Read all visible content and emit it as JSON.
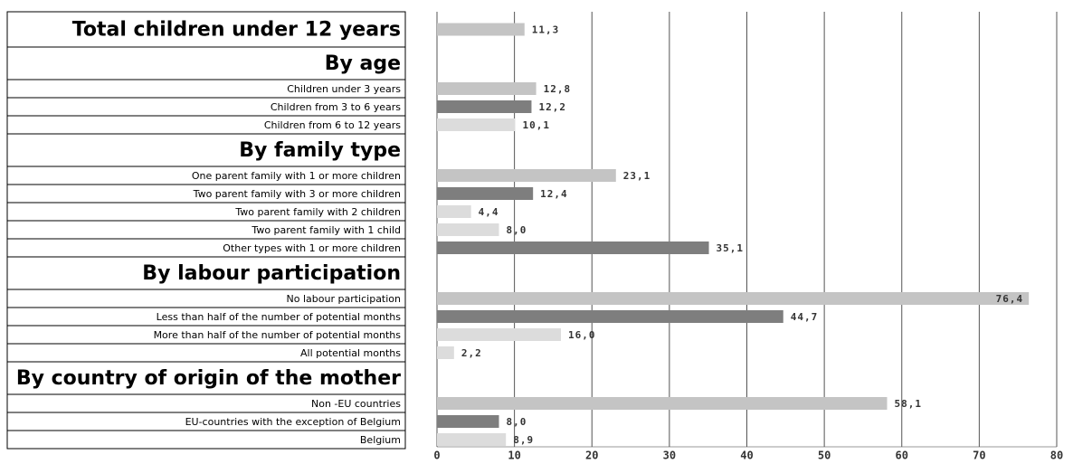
{
  "chart_data": {
    "type": "bar",
    "orientation": "horizontal",
    "categories": [
      "Total children under 12 years",
      "By age",
      "Children under 3 years",
      "Children from 3 to 6 years",
      "Children from 6 to 12 years",
      "By family type",
      "One parent family with 1 or more children",
      "Two parent family with 3 or more children",
      "Two parent family with 2 children",
      "Two parent family with 1 child",
      "Other types with 1 or more children",
      "By labour participation",
      "No labour participation",
      "Less than half of the number of potential months",
      "More than half of the number of potential months",
      "All potential months",
      "By country of origin of the mother",
      "Non -EU countries",
      "EU-countries with the exception of Belgium",
      "Belgium"
    ],
    "values": [
      11.3,
      null,
      12.8,
      12.2,
      10.1,
      null,
      23.1,
      12.4,
      4.4,
      8.0,
      35.1,
      null,
      76.4,
      44.7,
      16.0,
      2.2,
      null,
      58.1,
      8.0,
      8.9
    ],
    "value_labels": [
      "11,3",
      null,
      "12,8",
      "12,2",
      "10,1",
      null,
      "23,1",
      "12,4",
      "4,4",
      "8,0",
      "35,1",
      null,
      "76,4",
      "44,7",
      "16,0",
      "2,2",
      null,
      "58,1",
      "8,0",
      "8,9"
    ],
    "colors": [
      "#c4c4c4",
      null,
      "#c4c4c4",
      "#7e7e7e",
      "#dcdcdc",
      null,
      "#c4c4c4",
      "#7e7e7e",
      "#dcdcdc",
      "#dcdcdc",
      "#7e7e7e",
      null,
      "#c4c4c4",
      "#7e7e7e",
      "#dcdcdc",
      "#dcdcdc",
      null,
      "#c4c4c4",
      "#7e7e7e",
      "#dcdcdc"
    ],
    "xlim": [
      0,
      80
    ],
    "xticks": [
      0,
      10,
      20,
      30,
      40,
      50,
      60,
      70,
      80
    ],
    "grid": true
  }
}
